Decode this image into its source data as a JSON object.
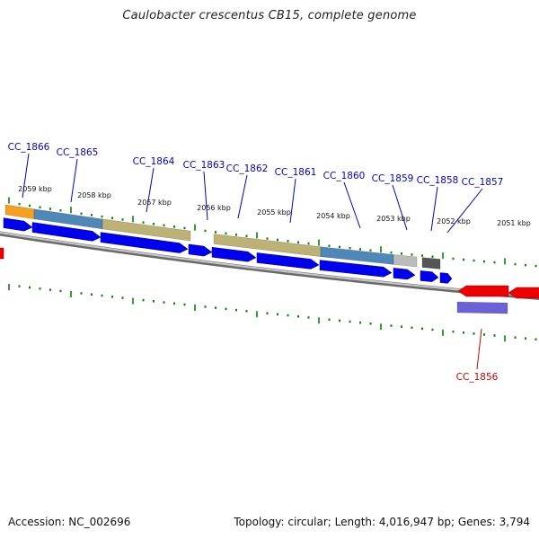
{
  "title": "Caulobacter crescentus CB15, complete genome",
  "footer": {
    "accession": "Accession: NC_002696",
    "summary": "Topology: circular; Length: 4,016,947 bp; Genes: 3,794"
  },
  "colors": {
    "forward_label": "#0000cc",
    "reverse_label": "#cc0000",
    "forward_cds": "#0000ee",
    "reverse_cds": "#ee0000",
    "backbone": "#888888",
    "ticks": "#008800",
    "feat_orange": "#f5a020",
    "feat_steelblue": "#4f87b8",
    "feat_khaki": "#bdb276",
    "feat_gray": "#bbbbbb",
    "feat_darkgray": "#555555",
    "feat_purple": "#6a62d6"
  },
  "scale_labels": [
    "2059 kbp",
    "2058 kbp",
    "2057 kbp",
    "2056 kbp",
    "2055 kbp",
    "2054 kbp",
    "2053 kbp",
    "2052 kbp",
    "2051 kbp"
  ],
  "genes": [
    {
      "name": "CC_1866",
      "strand": "forward"
    },
    {
      "name": "CC_1865",
      "strand": "forward"
    },
    {
      "name": "CC_1864",
      "strand": "forward"
    },
    {
      "name": "CC_1863",
      "strand": "forward"
    },
    {
      "name": "CC_1862",
      "strand": "forward"
    },
    {
      "name": "CC_1861",
      "strand": "forward"
    },
    {
      "name": "CC_1860",
      "strand": "forward"
    },
    {
      "name": "CC_1859",
      "strand": "forward"
    },
    {
      "name": "CC_1858",
      "strand": "forward"
    },
    {
      "name": "CC_1857",
      "strand": "forward"
    },
    {
      "name": "CC_1856",
      "strand": "reverse"
    }
  ]
}
